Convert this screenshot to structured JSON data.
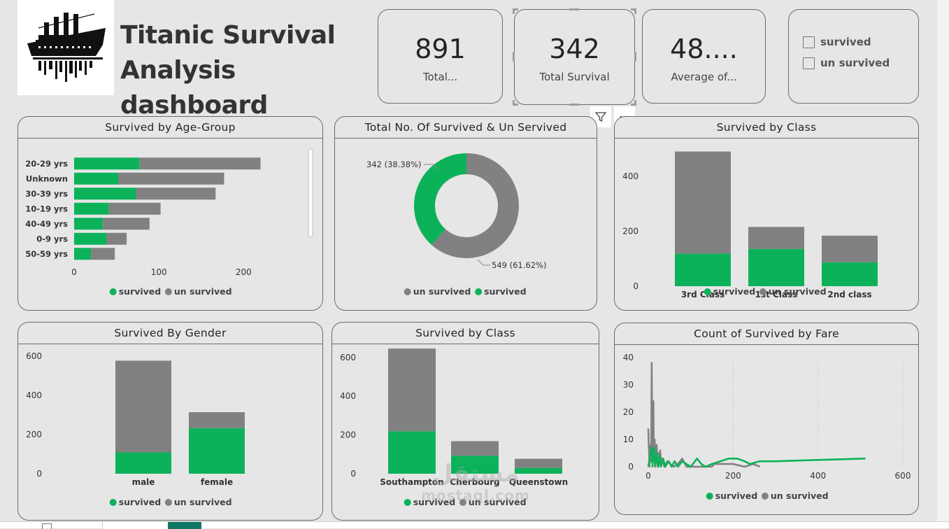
{
  "header": {
    "title_line1": "Titanic Survival",
    "title_line2": "Analysis dashboard"
  },
  "kpis": [
    {
      "value": "891",
      "label": "Total..."
    },
    {
      "value": "342",
      "label": "Total Survival"
    },
    {
      "value": "48....",
      "label": "Average of..."
    }
  ],
  "slicer": {
    "options": [
      {
        "label": "survived",
        "checked": false
      },
      {
        "label": "un survived",
        "checked": false
      }
    ]
  },
  "colors": {
    "survived": "#0cb25a",
    "un_survived": "#818181"
  },
  "toolbar": {
    "filter_icon": "filter-icon",
    "more_icon": "more-options-icon"
  },
  "watermark": {
    "line1": "مستقل",
    "line2": "mostaql.com"
  },
  "chart_data": [
    {
      "id": "age",
      "type": "bar",
      "orientation": "horizontal",
      "stacked": true,
      "title": "Survived by Age-Group",
      "categories": [
        "20-29 yrs",
        "Unknown",
        "30-39 yrs",
        "10-19 yrs",
        "40-49 yrs",
        "0-9 yrs",
        "50-59 yrs"
      ],
      "series": [
        {
          "name": "survived",
          "values": [
            77,
            52,
            73,
            41,
            34,
            38,
            20
          ]
        },
        {
          "name": "un survived",
          "values": [
            143,
            125,
            94,
            61,
            55,
            24,
            28
          ]
        }
      ],
      "xlim": [
        0,
        260
      ],
      "ticks": [
        0,
        100,
        200
      ],
      "legend": "bottom-center"
    },
    {
      "id": "donut",
      "type": "pie",
      "donut": true,
      "title": "Total No. Of Survived & Un Servived",
      "slices": [
        {
          "name": "survived",
          "value": 342,
          "label": "342 (38.38%)"
        },
        {
          "name": "un survived",
          "value": 549,
          "label": "549 (61.62%)"
        }
      ],
      "legend_order": [
        "un survived",
        "survived"
      ],
      "legend": "bottom-center"
    },
    {
      "id": "class",
      "type": "bar",
      "stacked": true,
      "title": "Survived by Class",
      "categories": [
        "3rd Class",
        "1st Class",
        "2nd class"
      ],
      "series": [
        {
          "name": "survived",
          "values": [
            119,
            136,
            87
          ]
        },
        {
          "name": "un survived",
          "values": [
            372,
            80,
            97
          ]
        }
      ],
      "ylim": [
        0,
        500
      ],
      "ticks": [
        0,
        200,
        400
      ],
      "legend": "bottom-center"
    },
    {
      "id": "gender",
      "type": "bar",
      "stacked": true,
      "title": "Survived By Gender",
      "categories": [
        "male",
        "female"
      ],
      "series": [
        {
          "name": "survived",
          "values": [
            109,
            233
          ]
        },
        {
          "name": "un survived",
          "values": [
            468,
            81
          ]
        }
      ],
      "ylim": [
        0,
        600
      ],
      "ticks": [
        0,
        200,
        400,
        600
      ],
      "legend": "bottom-center"
    },
    {
      "id": "embark",
      "type": "bar",
      "stacked": true,
      "title": "Survived by Class",
      "categories": [
        "Southampton",
        "Cherbourg",
        "Queenstown"
      ],
      "series": [
        {
          "name": "survived",
          "values": [
            219,
            93,
            30
          ]
        },
        {
          "name": "un survived",
          "values": [
            427,
            75,
            47
          ]
        }
      ],
      "ylim": [
        0,
        650
      ],
      "ticks": [
        0,
        200,
        400,
        600
      ],
      "legend": "bottom-center"
    },
    {
      "id": "fare",
      "type": "line",
      "title": "Count of Survived by Fare",
      "xlim": [
        0,
        600
      ],
      "ylim": [
        0,
        40
      ],
      "xticks": [
        0,
        200,
        400,
        600
      ],
      "yticks": [
        0,
        10,
        20,
        30,
        40
      ],
      "series": [
        {
          "name": "survived",
          "points": [
            [
              0,
              0
            ],
            [
              8,
              7
            ],
            [
              10,
              1
            ],
            [
              13,
              7
            ],
            [
              16,
              0
            ],
            [
              20,
              5
            ],
            [
              24,
              0
            ],
            [
              27,
              4
            ],
            [
              30,
              0
            ],
            [
              35,
              3
            ],
            [
              40,
              0
            ],
            [
              48,
              2
            ],
            [
              55,
              0
            ],
            [
              62,
              2
            ],
            [
              70,
              0
            ],
            [
              80,
              2
            ],
            [
              90,
              1
            ],
            [
              100,
              0
            ],
            [
              115,
              3
            ],
            [
              125,
              1
            ],
            [
              135,
              0
            ],
            [
              150,
              1
            ],
            [
              170,
              2
            ],
            [
              190,
              3
            ],
            [
              210,
              3
            ],
            [
              227,
              2
            ],
            [
              240,
              1
            ],
            [
              262,
              2
            ],
            [
              300,
              2
            ],
            [
              400,
              2.5
            ],
            [
              512,
              3
            ]
          ]
        },
        {
          "name": "un survived",
          "points": [
            [
              0,
              14
            ],
            [
              3,
              0
            ],
            [
              5,
              8
            ],
            [
              7,
              2
            ],
            [
              8,
              38
            ],
            [
              9,
              5
            ],
            [
              10,
              0
            ],
            [
              12,
              24
            ],
            [
              13,
              3
            ],
            [
              15,
              10
            ],
            [
              17,
              1
            ],
            [
              20,
              8
            ],
            [
              22,
              0
            ],
            [
              24,
              5
            ],
            [
              26,
              2
            ],
            [
              28,
              6
            ],
            [
              30,
              1
            ],
            [
              33,
              3
            ],
            [
              38,
              0
            ],
            [
              45,
              2
            ],
            [
              52,
              1
            ],
            [
              60,
              0
            ],
            [
              70,
              1
            ],
            [
              80,
              3
            ],
            [
              90,
              0
            ],
            [
              110,
              0
            ],
            [
              150,
              0
            ],
            [
              155,
              1
            ],
            [
              200,
              1
            ],
            [
              227,
              0
            ],
            [
              247,
              1
            ],
            [
              263,
              0
            ]
          ]
        }
      ],
      "legend": "bottom-center"
    }
  ]
}
